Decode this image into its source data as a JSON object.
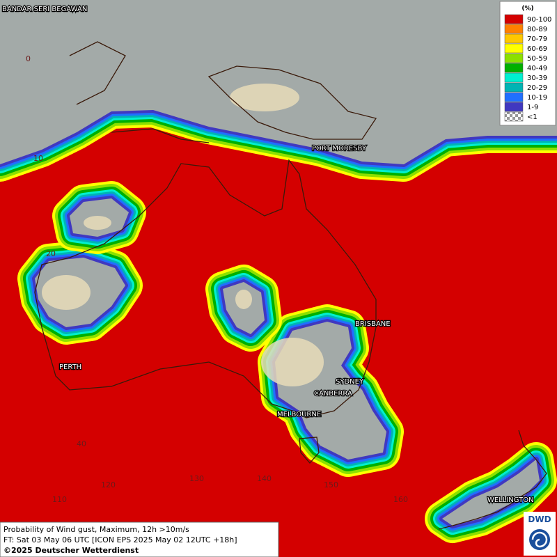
{
  "map": {
    "cities": [
      {
        "label": "BANDAR SERI BEGAWAN"
      },
      {
        "label": "PORT MORESBY"
      },
      {
        "label": "BRISBANE"
      },
      {
        "label": "SYDNEY"
      },
      {
        "label": "CANBERRA"
      },
      {
        "label": "MELBOURNE"
      },
      {
        "label": "PERTH"
      },
      {
        "label": "WELLINGTON"
      }
    ],
    "latitude_labels": [
      "0",
      "10",
      "20",
      "40"
    ],
    "longitude_labels": [
      "110",
      "120",
      "130",
      "140",
      "150",
      "160"
    ]
  },
  "legend": {
    "title": "(%)",
    "items": [
      {
        "label": "90-100",
        "color": "#d40000"
      },
      {
        "label": "80-89",
        "color": "#ff8000"
      },
      {
        "label": "70-79",
        "color": "#ffc800"
      },
      {
        "label": "60-69",
        "color": "#ffff00"
      },
      {
        "label": "50-59",
        "color": "#8ce000"
      },
      {
        "label": "40-49",
        "color": "#00b000"
      },
      {
        "label": "30-39",
        "color": "#00f0d0"
      },
      {
        "label": "20-29",
        "color": "#00b4b4"
      },
      {
        "label": "10-19",
        "color": "#2070ff"
      },
      {
        "label": "1-9",
        "color": "#4038c0"
      },
      {
        "label": "<1",
        "color": "checker"
      }
    ]
  },
  "footer": {
    "line1": "Probability of Wind gust, Maximum, 12h >10m/s",
    "line2": "FT: Sat 03 May 06 UTC [ICON EPS 2025 May 02 12UTC +18h]",
    "line3": "©2025 Deutscher Wetterdienst"
  },
  "logo": "DWD"
}
